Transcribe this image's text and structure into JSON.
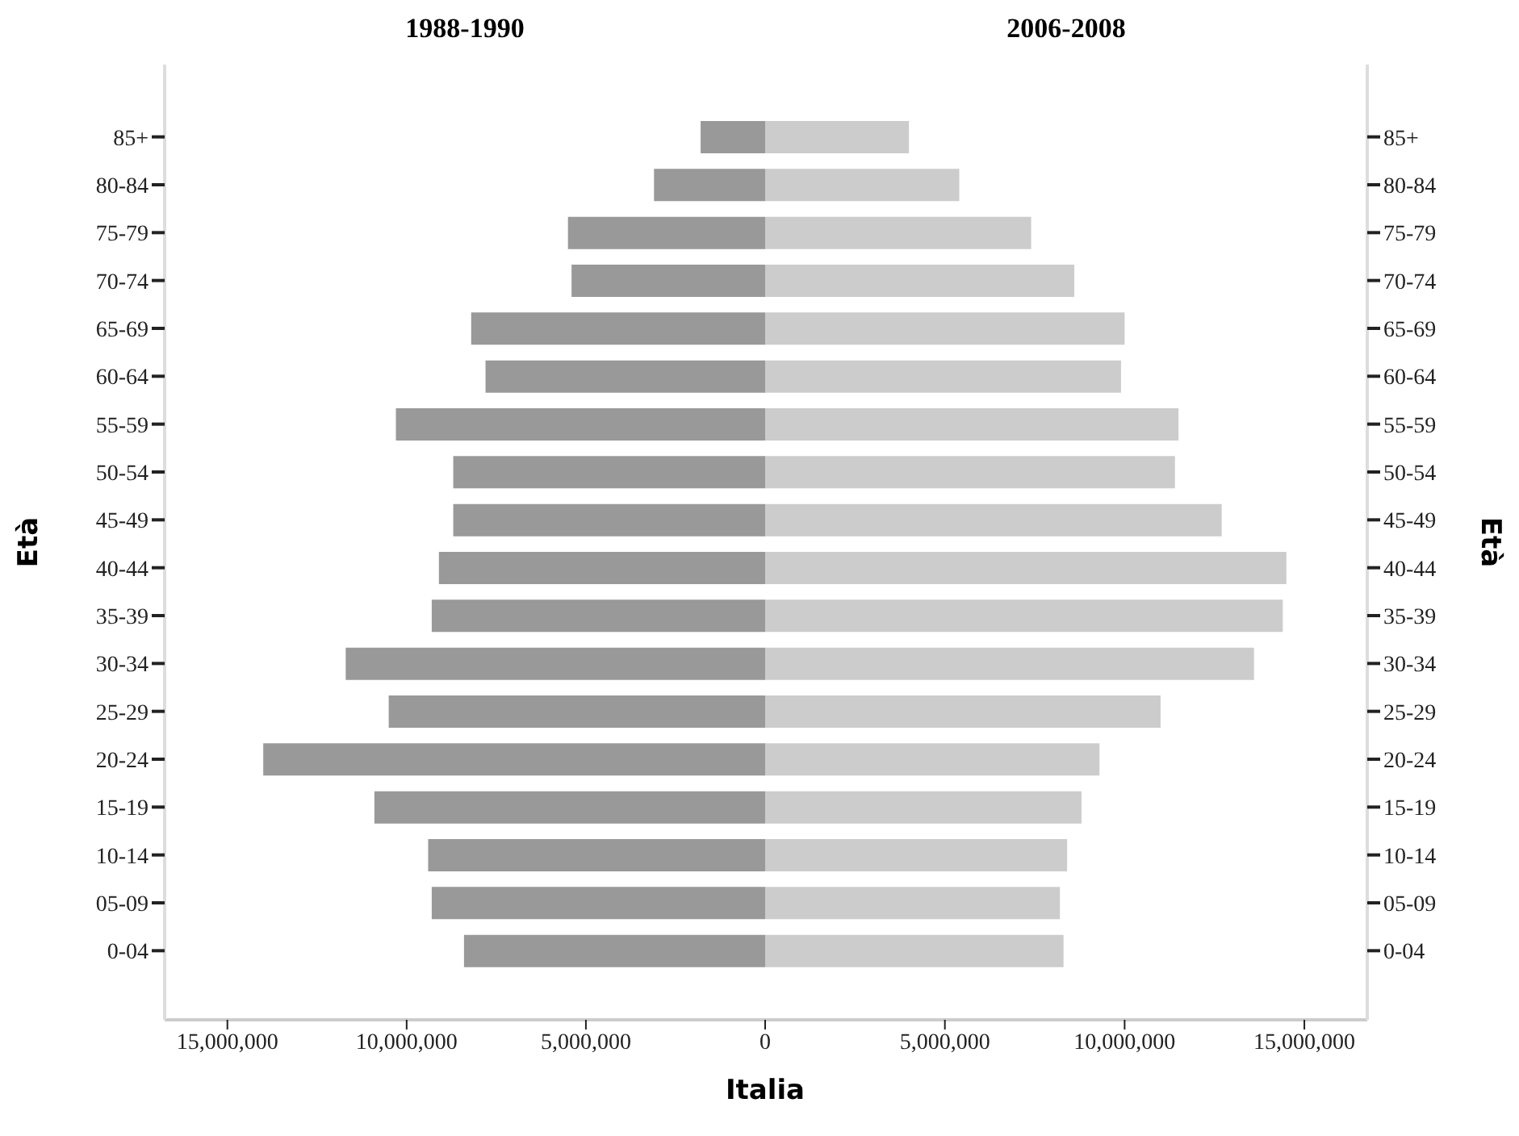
{
  "chart_data": [
    {
      "type": "bar",
      "orientation": "horizontal",
      "title": "1988-1990",
      "ylabel": "Età",
      "xlabel": "Italia",
      "categories": [
        "85+",
        "80-84",
        "75-79",
        "70-74",
        "65-69",
        "60-64",
        "55-59",
        "50-54",
        "45-49",
        "40-44",
        "35-39",
        "30-34",
        "25-29",
        "20-24",
        "15-19",
        "10-14",
        "05-09",
        "0-04"
      ],
      "series": [
        {
          "color": "#999999",
          "values": [
            1800000,
            3100000,
            5500000,
            5400000,
            8200000,
            7800000,
            10300000,
            8700000,
            8700000,
            9100000,
            9300000,
            11700000,
            10500000,
            14000000,
            10900000,
            9400000,
            9300000,
            8400000
          ]
        }
      ],
      "xlim": [
        16750000,
        0
      ],
      "xticks": [
        {
          "value": 15000000,
          "label": "15,000,000"
        },
        {
          "value": 10000000,
          "label": "10,000,000"
        },
        {
          "value": 5000000,
          "label": "5,000,000"
        },
        {
          "value": 0,
          "label": null
        }
      ]
    },
    {
      "type": "bar",
      "orientation": "horizontal",
      "title": "2006-2008",
      "ylabel": "Età",
      "categories": [
        "85+",
        "80-84",
        "75-79",
        "70-74",
        "65-69",
        "60-64",
        "55-59",
        "50-54",
        "45-49",
        "40-44",
        "35-39",
        "30-34",
        "25-29",
        "20-24",
        "15-19",
        "10-14",
        "05-09",
        "0-04"
      ],
      "series": [
        {
          "color": "#cccccc",
          "values": [
            4000000,
            5400000,
            7400000,
            8600000,
            10000000,
            9900000,
            11500000,
            11400000,
            12700000,
            14500000,
            14400000,
            13600000,
            11000000,
            9300000,
            8800000,
            8400000,
            8200000,
            8300000
          ]
        }
      ],
      "xlim": [
        0,
        16750000
      ],
      "xticks": [
        0,
        {
          "value": 5000000,
          "label": "5,000,000"
        },
        {
          "value": 10000000,
          "label": "10,000,000"
        },
        {
          "value": 15000000,
          "label": "15,000,000"
        }
      ]
    }
  ]
}
